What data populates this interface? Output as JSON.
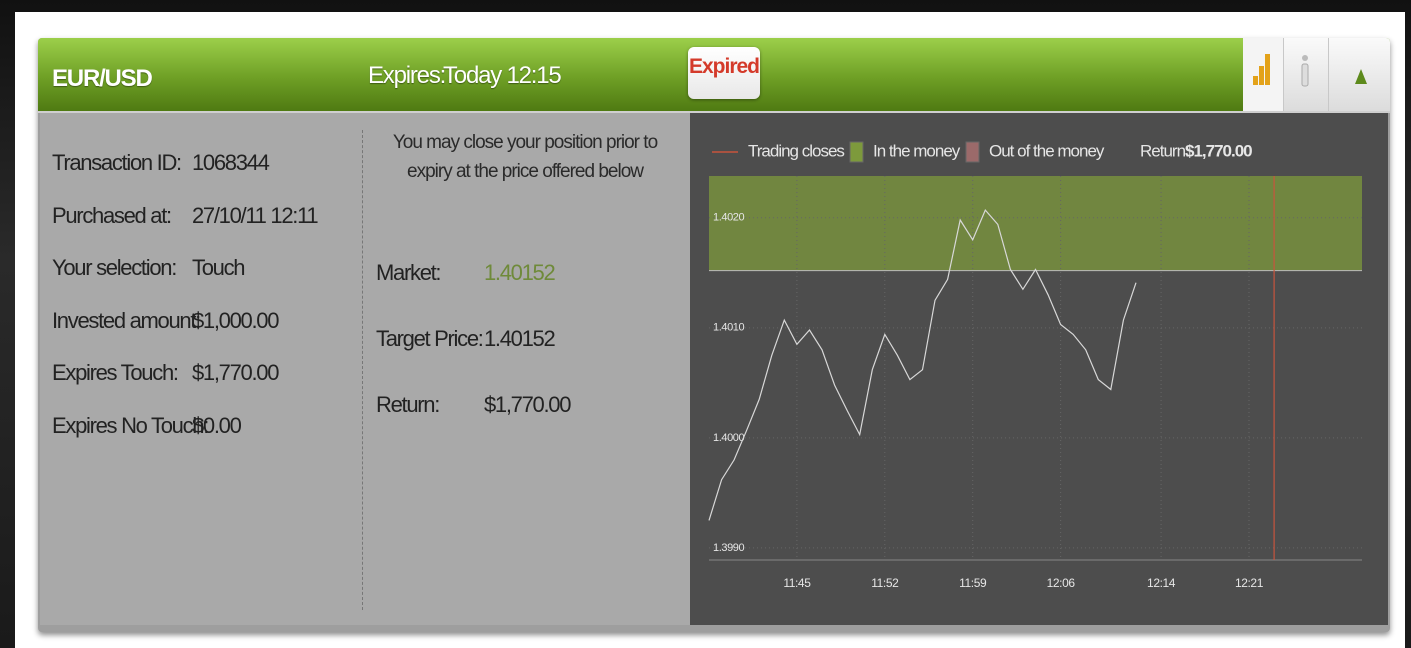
{
  "header": {
    "pair": "EUR/USD",
    "expires_label": "Expires:",
    "expires_value": "Today 12:15",
    "status": "Expired"
  },
  "details": [
    {
      "label": "Transaction ID:",
      "value": "1068344"
    },
    {
      "label": "Purchased at:",
      "value": "27/10/11 12:11"
    },
    {
      "label": "Your selection:",
      "value": "Touch"
    },
    {
      "label": "Invested amount:",
      "value": "$1,000.00"
    },
    {
      "label": "Expires Touch:",
      "value": "$1,770.00"
    },
    {
      "label": "Expires No Touch:",
      "value": "$0.00"
    }
  ],
  "position": {
    "note": "You may close your position prior to expiry at the price offered below",
    "rows": [
      {
        "label": "Market:",
        "value": 1.40152
      },
      {
        "label": "Target Price:",
        "value": 1.40152
      },
      {
        "label": "Return:",
        "value": "$1,770.00"
      }
    ]
  },
  "chart_data": {
    "type": "line",
    "legend": [
      {
        "name": "Trading closes",
        "color": "#c8553d"
      },
      {
        "name": "In the money",
        "color": "#7d9a3c"
      },
      {
        "name": "Out of the money",
        "color": "#9b6a6a"
      }
    ],
    "return_label": "Return:",
    "return_value": "$1,770.00",
    "x": [
      "11:38",
      "11:39",
      "11:40",
      "11:41",
      "11:42",
      "11:43",
      "11:44",
      "11:45",
      "11:46",
      "11:47",
      "11:48",
      "11:49",
      "11:50",
      "11:51",
      "11:52",
      "11:53",
      "11:54",
      "11:55",
      "11:56",
      "11:57",
      "11:58",
      "11:59",
      "12:00",
      "12:01",
      "12:02",
      "12:03",
      "12:04",
      "12:05",
      "12:06",
      "12:07",
      "12:08",
      "12:09",
      "12:10",
      "12:11",
      "12:12"
    ],
    "values": [
      1.39925,
      1.39962,
      1.3998,
      1.40007,
      1.40035,
      1.40075,
      1.40107,
      1.40085,
      1.40098,
      1.4008,
      1.40048,
      1.40025,
      1.40003,
      1.40062,
      1.40094,
      1.40075,
      1.40053,
      1.40062,
      1.40125,
      1.40144,
      1.40198,
      1.4018,
      1.40207,
      1.40194,
      1.40153,
      1.40135,
      1.40153,
      1.4013,
      1.40103,
      1.40094,
      1.4008,
      1.40053,
      1.40044,
      1.40107,
      1.40141
    ],
    "color": "#d8d8d8",
    "close_x": "12:23",
    "xlim": [
      "11:38",
      "12:30"
    ],
    "xticks": [
      "11:45",
      "11:52",
      "11:59",
      "12:06",
      "12:14",
      "12:21"
    ],
    "ylim": [
      1.39889,
      1.40238
    ],
    "yticks": [
      {
        "value": 1.399,
        "label": "1.3990"
      },
      {
        "value": 1.4,
        "label": "1.4000"
      },
      {
        "value": 1.401,
        "label": "1.4010"
      },
      {
        "value": 1.402,
        "label": "1.4020"
      }
    ],
    "grid": true
  }
}
